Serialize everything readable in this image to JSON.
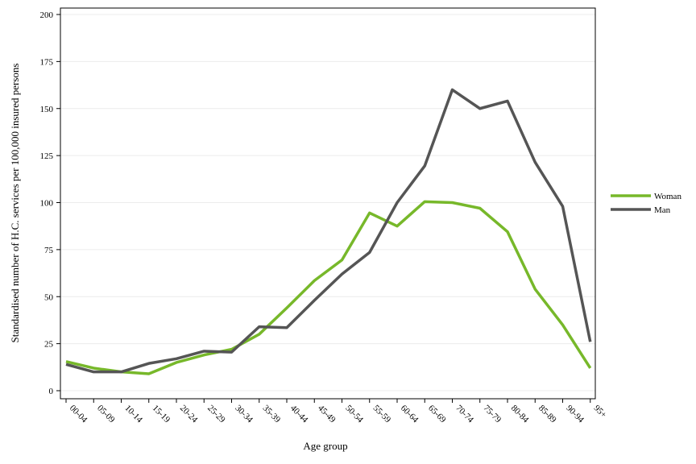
{
  "chart_data": {
    "type": "line",
    "title": "",
    "xlabel": "Age group",
    "ylabel": "Standardised number of H.C. services per 100,000 insured persons",
    "categories": [
      "00-04",
      "05-09",
      "10-14",
      "15-19",
      "20-24",
      "25-29",
      "30-34",
      "35-39",
      "40-44",
      "45-49",
      "50-54",
      "55-59",
      "60-64",
      "65-69",
      "70-74",
      "75-79",
      "80-84",
      "85-89",
      "90-94",
      "95+"
    ],
    "ylim": [
      0,
      200
    ],
    "yticks": [
      "0",
      "25",
      "50",
      "75",
      "100",
      "125",
      "150",
      "175",
      "200"
    ],
    "grid": true,
    "legend_position": "right",
    "series": [
      {
        "name": "Woman",
        "color": "#77b82a",
        "values": [
          15.5,
          12,
          10,
          9,
          15,
          19,
          22,
          30,
          44,
          58.5,
          69.5,
          94.5,
          87.5,
          100.5,
          100,
          97,
          84.5,
          54,
          35,
          12
        ]
      },
      {
        "name": "Man",
        "color": "#555555",
        "values": [
          14,
          10,
          10,
          14.5,
          17,
          21,
          20.5,
          34,
          33.5,
          48,
          62,
          73.5,
          100,
          119.5,
          160,
          150,
          154,
          121.5,
          98,
          26
        ]
      }
    ]
  }
}
